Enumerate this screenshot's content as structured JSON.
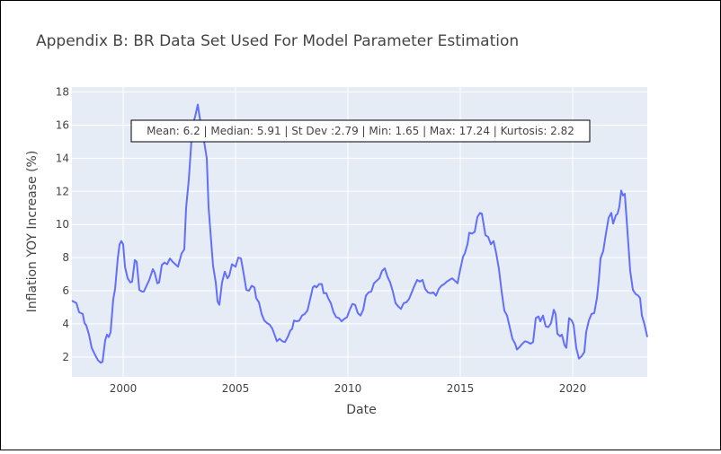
{
  "chart_data": {
    "type": "line",
    "title": "Appendix B: BR Data Set Used For Model Parameter Estimation",
    "xlabel": "Date",
    "ylabel": "Inflation YOY Increase (%)",
    "annotation": "Mean: 6.2 | Median: 5.91 | St Dev :2.79 | Min: 1.65 | Max: 17.24 | Kurtosis: 2.82",
    "color": "#636efa",
    "grid": true,
    "xlim": [
      1997.72,
      2023.32
    ],
    "ylim": [
      0.8,
      18.3
    ],
    "xticks": [
      2000,
      2005,
      2010,
      2015,
      2020
    ],
    "yticks": [
      2,
      4,
      6,
      8,
      10,
      12,
      14,
      16,
      18
    ],
    "x": [
      1997.72,
      1997.92,
      1998.04,
      1998.2,
      1998.28,
      1998.36,
      1998.48,
      1998.6,
      1998.76,
      1998.88,
      1999.0,
      1999.08,
      1999.2,
      1999.28,
      1999.36,
      1999.44,
      1999.56,
      1999.64,
      1999.76,
      1999.84,
      1999.92,
      2000.0,
      2000.08,
      2000.2,
      2000.32,
      2000.4,
      2000.52,
      2000.6,
      2000.72,
      2000.84,
      2000.92,
      2001.04,
      2001.16,
      2001.32,
      2001.4,
      2001.52,
      2001.6,
      2001.72,
      2001.84,
      2001.96,
      2002.08,
      2002.2,
      2002.32,
      2002.44,
      2002.6,
      2002.72,
      2002.8,
      2002.92,
      2003.0,
      2003.08,
      2003.2,
      2003.32,
      2003.4,
      2003.52,
      2003.72,
      2003.8,
      2003.92,
      2004.0,
      2004.12,
      2004.2,
      2004.28,
      2004.4,
      2004.52,
      2004.64,
      2004.72,
      2004.84,
      2005.0,
      2005.12,
      2005.24,
      2005.36,
      2005.48,
      2005.6,
      2005.72,
      2005.84,
      2005.92,
      2006.04,
      2006.16,
      2006.28,
      2006.4,
      2006.52,
      2006.64,
      2006.76,
      2006.84,
      2006.96,
      2007.08,
      2007.2,
      2007.32,
      2007.44,
      2007.52,
      2007.6,
      2007.72,
      2007.84,
      2007.96,
      2008.08,
      2008.2,
      2008.32,
      2008.44,
      2008.52,
      2008.6,
      2008.72,
      2008.84,
      2008.92,
      2009.04,
      2009.12,
      2009.24,
      2009.36,
      2009.48,
      2009.6,
      2009.72,
      2009.84,
      2009.96,
      2010.08,
      2010.2,
      2010.32,
      2010.44,
      2010.56,
      2010.68,
      2010.8,
      2010.92,
      2011.04,
      2011.16,
      2011.28,
      2011.4,
      2011.52,
      2011.64,
      2011.76,
      2011.88,
      2012.0,
      2012.12,
      2012.24,
      2012.36,
      2012.48,
      2012.6,
      2012.72,
      2012.84,
      2012.96,
      2013.08,
      2013.2,
      2013.32,
      2013.44,
      2013.56,
      2013.68,
      2013.8,
      2013.92,
      2014.04,
      2014.16,
      2014.28,
      2014.4,
      2014.52,
      2014.64,
      2014.76,
      2014.88,
      2015.0,
      2015.12,
      2015.2,
      2015.32,
      2015.4,
      2015.52,
      2015.64,
      2015.76,
      2015.88,
      2015.96,
      2016.04,
      2016.12,
      2016.24,
      2016.36,
      2016.48,
      2016.6,
      2016.72,
      2016.84,
      2016.96,
      2017.08,
      2017.2,
      2017.32,
      2017.44,
      2017.52,
      2017.64,
      2017.76,
      2017.88,
      2018.0,
      2018.12,
      2018.24,
      2018.36,
      2018.48,
      2018.56,
      2018.68,
      2018.8,
      2018.92,
      2019.04,
      2019.16,
      2019.24,
      2019.32,
      2019.44,
      2019.52,
      2019.64,
      2019.72,
      2019.84,
      2019.96,
      2020.04,
      2020.16,
      2020.28,
      2020.4,
      2020.52,
      2020.6,
      2020.72,
      2020.84,
      2020.96,
      2021.08,
      2021.16,
      2021.24,
      2021.36,
      2021.48,
      2021.6,
      2021.72,
      2021.8,
      2021.92,
      2022.0,
      2022.08,
      2022.16,
      2022.24,
      2022.32,
      2022.44,
      2022.56,
      2022.68,
      2022.8,
      2022.92,
      2023.0,
      2023.08,
      2023.2,
      2023.32
    ],
    "values": [
      5.4,
      5.25,
      4.7,
      4.6,
      4.05,
      3.9,
      3.35,
      2.55,
      2.1,
      1.8,
      1.65,
      1.7,
      3.0,
      3.35,
      3.2,
      3.5,
      5.5,
      6.1,
      7.95,
      8.8,
      9.0,
      8.8,
      7.45,
      6.75,
      6.5,
      6.55,
      7.85,
      7.75,
      6.05,
      5.95,
      5.95,
      6.3,
      6.65,
      7.3,
      7.1,
      6.45,
      6.5,
      7.55,
      7.7,
      7.6,
      7.95,
      7.75,
      7.6,
      7.45,
      8.25,
      8.5,
      11.0,
      12.7,
      14.3,
      15.95,
      16.5,
      17.24,
      16.5,
      15.7,
      14.0,
      11.05,
      8.9,
      7.5,
      6.5,
      5.35,
      5.15,
      6.5,
      7.15,
      6.75,
      6.9,
      7.6,
      7.45,
      8.0,
      7.95,
      7.05,
      6.05,
      6.0,
      6.3,
      6.2,
      5.55,
      5.3,
      4.6,
      4.2,
      4.05,
      3.95,
      3.7,
      3.25,
      2.95,
      3.1,
      2.95,
      2.9,
      3.2,
      3.6,
      3.7,
      4.2,
      4.15,
      4.2,
      4.5,
      4.6,
      4.8,
      5.5,
      6.2,
      6.3,
      6.2,
      6.4,
      6.4,
      5.85,
      5.85,
      5.55,
      5.25,
      4.7,
      4.4,
      4.35,
      4.15,
      4.3,
      4.4,
      4.85,
      5.2,
      5.15,
      4.65,
      4.5,
      4.85,
      5.7,
      5.9,
      5.95,
      6.45,
      6.6,
      6.75,
      7.2,
      7.35,
      6.85,
      6.5,
      5.95,
      5.25,
      5.05,
      4.9,
      5.25,
      5.3,
      5.5,
      5.9,
      6.3,
      6.65,
      6.55,
      6.65,
      6.1,
      5.9,
      5.85,
      5.9,
      5.7,
      6.1,
      6.3,
      6.4,
      6.55,
      6.65,
      6.75,
      6.6,
      6.45,
      7.3,
      8.05,
      8.25,
      8.8,
      9.5,
      9.45,
      9.55,
      10.45,
      10.7,
      10.65,
      10.0,
      9.35,
      9.25,
      8.8,
      9.0,
      8.25,
      7.3,
      5.95,
      4.8,
      4.5,
      3.8,
      3.1,
      2.8,
      2.45,
      2.6,
      2.8,
      2.95,
      2.9,
      2.8,
      2.9,
      4.35,
      4.45,
      4.15,
      4.5,
      3.85,
      3.8,
      4.05,
      4.85,
      4.6,
      3.4,
      3.25,
      3.35,
      2.7,
      2.55,
      4.35,
      4.2,
      3.95,
      2.55,
      1.9,
      2.05,
      2.3,
      3.5,
      4.2,
      4.6,
      4.65,
      5.55,
      6.6,
      7.95,
      8.4,
      9.45,
      10.4,
      10.7,
      10.05,
      10.55,
      10.65,
      11.1,
      12.05,
      11.75,
      11.85,
      9.55,
      7.2,
      6.05,
      5.8,
      5.7,
      5.55,
      4.5,
      3.95,
      3.2
    ]
  }
}
